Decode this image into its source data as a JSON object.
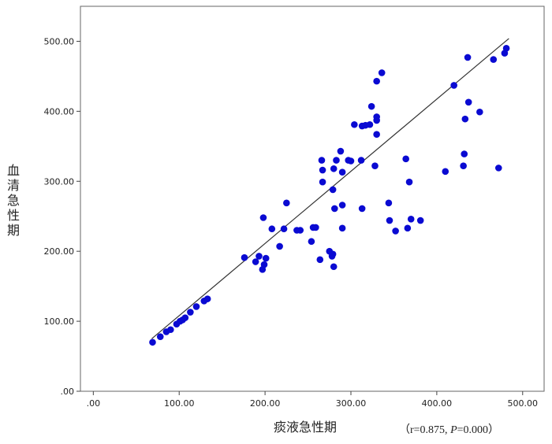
{
  "chart_data": {
    "type": "scatter",
    "xlabel": "痰液急性期",
    "ylabel": "血清急性期",
    "stats": {
      "open": "（",
      "r_text": "r=0.875, ",
      "p_italic": "P",
      "p_rest": "=0.000",
      "close": "）"
    },
    "x_ticks": [
      0,
      100,
      200,
      300,
      400,
      500
    ],
    "x_tick_labels": [
      ".00",
      "100.00",
      "200.00",
      "300.00",
      "400.00",
      "500.00"
    ],
    "y_ticks": [
      0,
      100,
      200,
      300,
      400,
      500
    ],
    "y_tick_labels": [
      ".00",
      "100.00",
      "200.00",
      "300.00",
      "400.00",
      "500.00"
    ],
    "xlim": [
      -15,
      525
    ],
    "ylim": [
      0,
      550
    ],
    "point_color": "#0a0ad2",
    "line_color": "#333333",
    "fit_line": [
      [
        68,
        75
      ],
      [
        484,
        504
      ]
    ],
    "points": [
      [
        69,
        70
      ],
      [
        78,
        78
      ],
      [
        85,
        85
      ],
      [
        90,
        88
      ],
      [
        97,
        96
      ],
      [
        101,
        100
      ],
      [
        104,
        102
      ],
      [
        107,
        105
      ],
      [
        113,
        113
      ],
      [
        120,
        121
      ],
      [
        129,
        129
      ],
      [
        133,
        132
      ],
      [
        176,
        191
      ],
      [
        189,
        185
      ],
      [
        193,
        193
      ],
      [
        197,
        174
      ],
      [
        199,
        181
      ],
      [
        201,
        190
      ],
      [
        198,
        248
      ],
      [
        208,
        232
      ],
      [
        217,
        207
      ],
      [
        222,
        232
      ],
      [
        225,
        269
      ],
      [
        237,
        230
      ],
      [
        241,
        230
      ],
      [
        254,
        214
      ],
      [
        256,
        234
      ],
      [
        259,
        234
      ],
      [
        264,
        188
      ],
      [
        267,
        299
      ],
      [
        267,
        316
      ],
      [
        266,
        330
      ],
      [
        275,
        200
      ],
      [
        278,
        193
      ],
      [
        279,
        196
      ],
      [
        280,
        178
      ],
      [
        279,
        288
      ],
      [
        281,
        261
      ],
      [
        280,
        318
      ],
      [
        283,
        330
      ],
      [
        288,
        343
      ],
      [
        290,
        313
      ],
      [
        290,
        266
      ],
      [
        290,
        233
      ],
      [
        297,
        330
      ],
      [
        300,
        329
      ],
      [
        304,
        381
      ],
      [
        312,
        330
      ],
      [
        313,
        379
      ],
      [
        313,
        261
      ],
      [
        317,
        380
      ],
      [
        322,
        381
      ],
      [
        324,
        407
      ],
      [
        328,
        322
      ],
      [
        330,
        387
      ],
      [
        330,
        392
      ],
      [
        330,
        367
      ],
      [
        330,
        443
      ],
      [
        336,
        455
      ],
      [
        344,
        269
      ],
      [
        345,
        244
      ],
      [
        352,
        229
      ],
      [
        364,
        332
      ],
      [
        366,
        233
      ],
      [
        368,
        299
      ],
      [
        370,
        246
      ],
      [
        381,
        244
      ],
      [
        410,
        314
      ],
      [
        420,
        437
      ],
      [
        431,
        322
      ],
      [
        432,
        339
      ],
      [
        433,
        389
      ],
      [
        436,
        477
      ],
      [
        437,
        413
      ],
      [
        450,
        399
      ],
      [
        466,
        474
      ],
      [
        472,
        319
      ],
      [
        479,
        483
      ],
      [
        481,
        490
      ]
    ]
  }
}
